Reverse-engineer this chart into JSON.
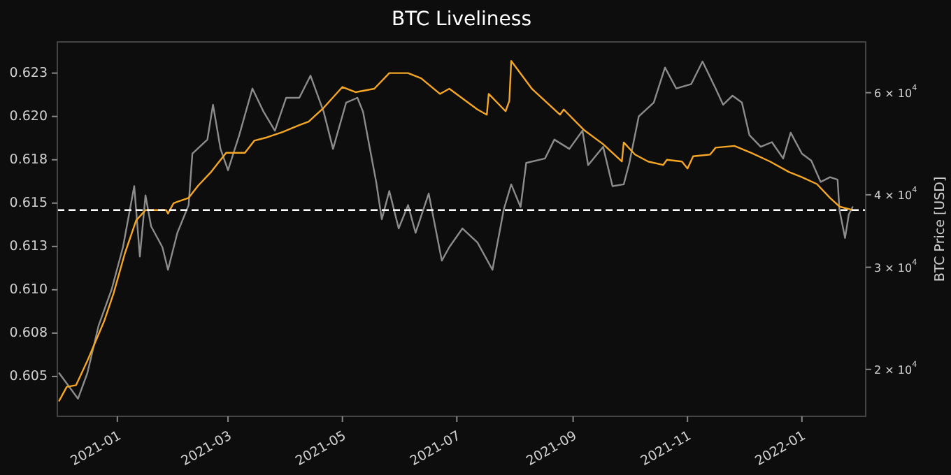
{
  "chart_data": {
    "type": "line",
    "title": "BTC Liveliness",
    "y2label": "BTC Price [USD]",
    "log": "y2",
    "grid": false,
    "marker": "none",
    "line_style": "solid",
    "xlim": [
      "2020-11-30",
      "2022-02-04"
    ],
    "xticks": [
      "2021-01",
      "2021-03",
      "2021-05",
      "2021-07",
      "2021-09",
      "2021-11",
      "2022-01"
    ],
    "ylim": [
      0.6027,
      0.6243
    ],
    "yticks": [
      0.605,
      {
        "value": 0.6075,
        "label": "0.608"
      },
      {
        "value": 0.61,
        "label": "0.610"
      },
      {
        "value": 0.6125,
        "label": "0.613"
      },
      0.615,
      {
        "value": 0.6175,
        "label": "0.618"
      },
      {
        "value": 0.62,
        "label": "0.620"
      },
      {
        "value": 0.6225,
        "label": "0.623"
      }
    ],
    "y2lim": [
      16600,
      73400
    ],
    "y2ticks": [
      {
        "value": 20000,
        "label": "2 × 10$^{4}$"
      },
      {
        "value": 30000,
        "label": "3 × 10$^{4}$"
      },
      {
        "value": 40000,
        "label": "4 × 10$^{4}$"
      },
      {
        "value": 60000,
        "label": "6 × 10$^{4}$"
      }
    ],
    "ref_lines": [
      {
        "axis": "y",
        "value": 0.6146,
        "color": "#ffffff",
        "line_style": "dashed"
      }
    ],
    "series": [
      {
        "axis": "y2",
        "color": "#8c8c8c",
        "x": [
          "2020-12-01",
          "2020-12-11",
          "2020-12-16",
          "2020-12-22",
          "2020-12-29",
          "2021-01-04",
          "2021-01-10",
          "2021-01-13",
          "2021-01-16",
          "2021-01-19",
          "2021-01-25",
          "2021-01-28",
          "2021-02-02",
          "2021-02-08",
          "2021-02-10",
          "2021-02-18",
          "2021-02-21",
          "2021-02-25",
          "2021-03-01",
          "2021-03-07",
          "2021-03-14",
          "2021-03-20",
          "2021-03-26",
          "2021-04-01",
          "2021-04-08",
          "2021-04-14",
          "2021-04-21",
          "2021-04-26",
          "2021-05-03",
          "2021-05-09",
          "2021-05-12",
          "2021-05-15",
          "2021-05-19",
          "2021-05-22",
          "2021-05-26",
          "2021-05-31",
          "2021-06-05",
          "2021-06-09",
          "2021-06-16",
          "2021-06-23",
          "2021-06-27",
          "2021-07-04",
          "2021-07-12",
          "2021-07-20",
          "2021-07-26",
          "2021-07-30",
          "2021-08-04",
          "2021-08-07",
          "2021-08-17",
          "2021-08-22",
          "2021-08-30",
          "2021-09-06",
          "2021-09-09",
          "2021-09-17",
          "2021-09-22",
          "2021-09-28",
          "2021-10-01",
          "2021-10-06",
          "2021-10-14",
          "2021-10-20",
          "2021-10-26",
          "2021-11-03",
          "2021-11-09",
          "2021-11-16",
          "2021-11-20",
          "2021-11-25",
          "2021-11-30",
          "2021-12-04",
          "2021-12-10",
          "2021-12-16",
          "2021-12-22",
          "2021-12-26",
          "2022-01-01",
          "2022-01-06",
          "2022-01-11",
          "2022-01-16",
          "2022-01-20",
          "2022-01-21",
          "2022-01-24",
          "2022-01-26",
          "2022-01-28"
        ],
        "values": [
          19700,
          17800,
          19700,
          23800,
          27500,
          32500,
          41400,
          31300,
          39900,
          35300,
          32500,
          29700,
          34400,
          38400,
          47100,
          49800,
          57200,
          48000,
          44100,
          50700,
          61000,
          55600,
          51600,
          58800,
          58800,
          64200,
          55600,
          48000,
          57700,
          58800,
          55600,
          49300,
          42100,
          36300,
          40600,
          35000,
          38400,
          34400,
          40200,
          30800,
          32500,
          35000,
          33100,
          29700,
          37700,
          41700,
          38100,
          45400,
          46200,
          49800,
          48000,
          51600,
          45000,
          48400,
          41400,
          41700,
          45400,
          54600,
          57700,
          66300,
          61000,
          62100,
          67900,
          61000,
          57200,
          59300,
          57700,
          50700,
          48400,
          49300,
          46200,
          51200,
          47100,
          45800,
          42100,
          42900,
          42500,
          37700,
          33700,
          37000,
          38100
        ]
      },
      {
        "axis": "y",
        "color": "#f5a623",
        "x": [
          "2020-12-01",
          "2020-12-05",
          "2020-12-10",
          "2020-12-16",
          "2020-12-25",
          "2020-12-30",
          "2021-01-05",
          "2021-01-11",
          "2021-01-16",
          "2021-01-27",
          "2021-01-28",
          "2021-01-31",
          "2021-02-08",
          "2021-02-13",
          "2021-02-20",
          "2021-02-28",
          "2021-03-10",
          "2021-03-15",
          "2021-03-22",
          "2021-03-30",
          "2021-04-08",
          "2021-04-13",
          "2021-04-21",
          "2021-05-01",
          "2021-05-08",
          "2021-05-18",
          "2021-05-26",
          "2021-06-05",
          "2021-06-12",
          "2021-06-22",
          "2021-06-27",
          "2021-07-12",
          "2021-07-17",
          "2021-07-18",
          "2021-07-27",
          "2021-07-29",
          "2021-07-30",
          "2021-08-10",
          "2021-08-25",
          "2021-08-27",
          "2021-09-07",
          "2021-09-17",
          "2021-09-27",
          "2021-09-28",
          "2021-10-04",
          "2021-10-11",
          "2021-10-19",
          "2021-10-21",
          "2021-10-29",
          "2021-11-01",
          "2021-11-04",
          "2021-11-13",
          "2021-11-16",
          "2021-11-26",
          "2021-12-05",
          "2021-12-15",
          "2021-12-25",
          "2022-01-01",
          "2022-01-09",
          "2022-01-16",
          "2022-01-21",
          "2022-01-28"
        ],
        "values": [
          0.6036,
          0.6044,
          0.6045,
          0.6059,
          0.6082,
          0.6098,
          0.6121,
          0.614,
          0.6146,
          0.6146,
          0.6144,
          0.615,
          0.6153,
          0.616,
          0.6168,
          0.6179,
          0.6179,
          0.6186,
          0.6188,
          0.6191,
          0.6195,
          0.6197,
          0.6205,
          0.6217,
          0.6214,
          0.6216,
          0.6225,
          0.6225,
          0.6222,
          0.6213,
          0.6216,
          0.6204,
          0.6201,
          0.6213,
          0.6203,
          0.6209,
          0.6232,
          0.6216,
          0.6201,
          0.6204,
          0.6192,
          0.6184,
          0.6174,
          0.6185,
          0.6178,
          0.6174,
          0.6172,
          0.6175,
          0.6174,
          0.617,
          0.6177,
          0.6178,
          0.6182,
          0.6183,
          0.6179,
          0.6174,
          0.6168,
          0.6165,
          0.6161,
          0.6153,
          0.6148,
          0.6146
        ]
      }
    ]
  }
}
